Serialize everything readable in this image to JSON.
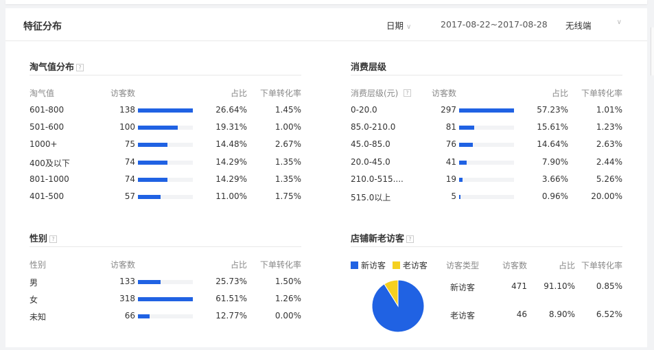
{
  "header": {
    "title": "特征分布",
    "date_dropdown": "日期",
    "date_range": "2017-08-22~2017-08-28",
    "device_dropdown": "无线端"
  },
  "colors": {
    "bar": "#2062e3",
    "new_visitor": "#2062e3",
    "old_visitor": "#f5d020"
  },
  "taoqi": {
    "title": "淘气值分布",
    "headers": [
      "淘气值",
      "访客数",
      "占比",
      "下单转化率"
    ],
    "rows": [
      [
        "601-800",
        138,
        "26.64%",
        "1.45%"
      ],
      [
        "501-600",
        100,
        "19.31%",
        "1.00%"
      ],
      [
        "1000+",
        75,
        "14.48%",
        "2.67%"
      ],
      [
        "400及以下",
        74,
        "14.29%",
        "1.35%"
      ],
      [
        "801-1000",
        74,
        "14.29%",
        "1.35%"
      ],
      [
        "401-500",
        57,
        "11.00%",
        "1.75%"
      ]
    ]
  },
  "spend": {
    "title": "消费层级",
    "headers": [
      "消费层级(元)",
      "访客数",
      "占比",
      "下单转化率"
    ],
    "rows": [
      [
        "0-20.0",
        297,
        "57.23%",
        "1.01%"
      ],
      [
        "85.0-210.0",
        81,
        "15.61%",
        "1.23%"
      ],
      [
        "45.0-85.0",
        76,
        "14.64%",
        "2.63%"
      ],
      [
        "20.0-45.0",
        41,
        "7.90%",
        "2.44%"
      ],
      [
        "210.0-515....",
        19,
        "3.66%",
        "5.26%"
      ],
      [
        "515.0以上",
        5,
        "0.96%",
        "20.00%"
      ]
    ]
  },
  "gender": {
    "title": "性别",
    "headers": [
      "性别",
      "访客数",
      "占比",
      "下单转化率"
    ],
    "rows": [
      [
        "男",
        133,
        "25.73%",
        "1.50%"
      ],
      [
        "女",
        318,
        "61.51%",
        "1.26%"
      ],
      [
        "未知",
        66,
        "12.77%",
        "0.00%"
      ]
    ]
  },
  "visitors": {
    "title": "店铺新老访客",
    "legend": [
      "新访客",
      "老访客"
    ],
    "headers": [
      "访客类型",
      "访客数",
      "占比",
      "下单转化率"
    ],
    "rows": [
      [
        "新访客",
        471,
        "91.10%",
        "0.85%"
      ],
      [
        "老访客",
        46,
        "8.90%",
        "6.52%"
      ]
    ],
    "chart_data": {
      "type": "pie",
      "labels": [
        "新访客",
        "老访客"
      ],
      "values": [
        91.1,
        8.9
      ]
    }
  }
}
